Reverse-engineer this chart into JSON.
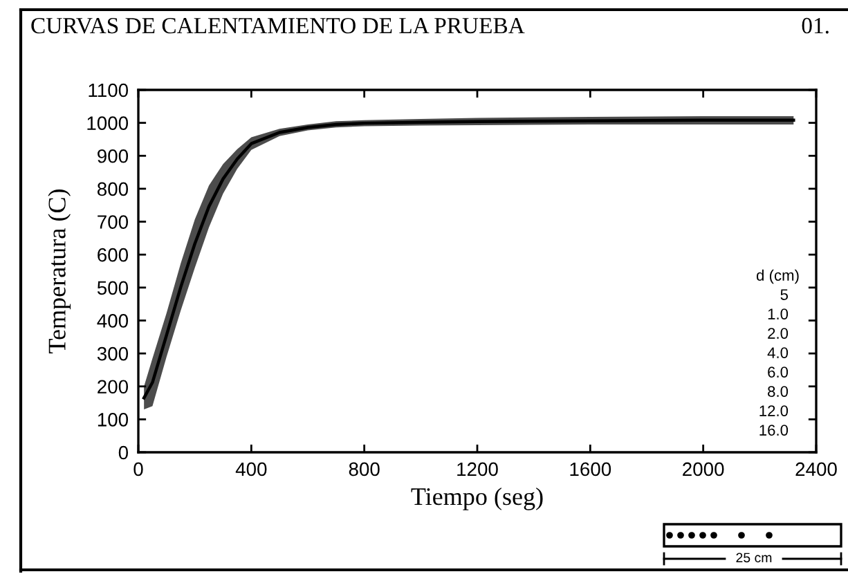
{
  "chart_data": {
    "type": "line",
    "title": "CURVAS DE CALENTAMIENTO DE LA PRUEBA",
    "xlabel": "Tiempo (seg)",
    "ylabel": "Temperatura (C)",
    "annotations": [
      "01.",
      "d (cm)",
      "5",
      "1.0",
      "2.0",
      "4.0",
      "6.0",
      "8.0",
      "12.0",
      "16.0",
      "25 cm"
    ],
    "series": [
      {
        "color": "#000000",
        "x": [
          20,
          50,
          100,
          150,
          200,
          250,
          300,
          350,
          400,
          500,
          600,
          700,
          800,
          1000,
          1200,
          1600,
          2000,
          2320
        ],
        "values": [
          165,
          212,
          356,
          501,
          633,
          746,
          830,
          890,
          937,
          971,
          986,
          995,
          999,
          1002,
          1004,
          1006,
          1008,
          1008
        ],
        "lower": [
          130,
          140,
          290,
          430,
          560,
          683,
          785,
          860,
          918,
          960,
          977,
          986,
          990,
          992,
          993,
          995,
          995,
          995
        ],
        "upper": [
          200,
          285,
          423,
          573,
          707,
          810,
          875,
          920,
          956,
          982,
          995,
          1005,
          1008,
          1012,
          1015,
          1018,
          1020,
          1020
        ]
      }
    ],
    "xlim": [
      0,
      2400
    ],
    "xticks": [
      0,
      400,
      800,
      1200,
      1600,
      2000,
      2400
    ],
    "ylim": [
      0,
      1100
    ],
    "yticks": [
      0,
      100,
      200,
      300,
      400,
      500,
      600,
      700,
      800,
      900,
      1000,
      1100
    ],
    "line_style": "solid"
  }
}
